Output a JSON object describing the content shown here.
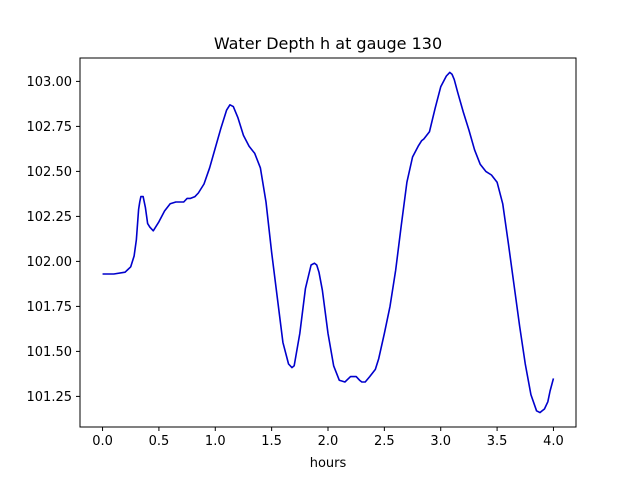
{
  "chart_data": {
    "type": "line",
    "title": "Water Depth h at gauge 130",
    "xlabel": "hours",
    "ylabel": "",
    "xlim": [
      -0.2,
      4.2
    ],
    "ylim": [
      101.08,
      103.13
    ],
    "xticks": [
      0.0,
      0.5,
      1.0,
      1.5,
      2.0,
      2.5,
      3.0,
      3.5,
      4.0
    ],
    "xtick_labels": [
      "0.0",
      "0.5",
      "1.0",
      "1.5",
      "2.0",
      "2.5",
      "3.0",
      "3.5",
      "4.0"
    ],
    "yticks": [
      101.25,
      101.5,
      101.75,
      102.0,
      102.25,
      102.5,
      102.75,
      103.0
    ],
    "ytick_labels": [
      "101.25",
      "101.50",
      "101.75",
      "102.00",
      "102.25",
      "102.50",
      "102.75",
      "103.00"
    ],
    "grid": false,
    "line_color": "#0000cc",
    "series": [
      {
        "x": [
          0.0,
          0.1,
          0.2,
          0.25,
          0.28,
          0.3,
          0.32,
          0.33,
          0.34,
          0.36,
          0.38,
          0.4,
          0.42,
          0.45,
          0.5,
          0.55,
          0.6,
          0.65,
          0.7,
          0.72,
          0.75,
          0.78,
          0.82,
          0.85,
          0.9,
          0.95,
          1.0,
          1.05,
          1.1,
          1.13,
          1.16,
          1.2,
          1.25,
          1.3,
          1.35,
          1.4,
          1.45,
          1.5,
          1.55,
          1.6,
          1.65,
          1.68,
          1.7,
          1.75,
          1.8,
          1.85,
          1.88,
          1.9,
          1.92,
          1.95,
          2.0,
          2.05,
          2.1,
          2.15,
          2.2,
          2.25,
          2.28,
          2.3,
          2.33,
          2.37,
          2.42,
          2.45,
          2.5,
          2.55,
          2.6,
          2.65,
          2.7,
          2.75,
          2.8,
          2.83,
          2.85,
          2.9,
          2.95,
          3.0,
          3.05,
          3.08,
          3.1,
          3.12,
          3.15,
          3.2,
          3.25,
          3.3,
          3.35,
          3.4,
          3.45,
          3.5,
          3.55,
          3.6,
          3.65,
          3.7,
          3.75,
          3.8,
          3.85,
          3.88,
          3.9,
          3.92,
          3.95,
          3.97,
          4.0
        ],
        "y": [
          101.93,
          101.93,
          101.94,
          101.97,
          102.03,
          102.12,
          102.29,
          102.33,
          102.36,
          102.36,
          102.3,
          102.21,
          102.19,
          102.17,
          102.22,
          102.28,
          102.32,
          102.33,
          102.33,
          102.33,
          102.35,
          102.35,
          102.36,
          102.38,
          102.43,
          102.52,
          102.63,
          102.74,
          102.84,
          102.87,
          102.86,
          102.8,
          102.7,
          102.64,
          102.6,
          102.52,
          102.33,
          102.05,
          101.8,
          101.55,
          101.43,
          101.41,
          101.42,
          101.6,
          101.85,
          101.98,
          101.99,
          101.98,
          101.94,
          101.84,
          101.6,
          101.42,
          101.34,
          101.33,
          101.36,
          101.36,
          101.34,
          101.33,
          101.33,
          101.36,
          101.4,
          101.46,
          101.6,
          101.75,
          101.95,
          102.2,
          102.44,
          102.58,
          102.64,
          102.67,
          102.68,
          102.72,
          102.85,
          102.97,
          103.03,
          103.05,
          103.04,
          103.01,
          102.94,
          102.83,
          102.73,
          102.62,
          102.54,
          102.5,
          102.48,
          102.44,
          102.32,
          102.1,
          101.87,
          101.64,
          101.43,
          101.26,
          101.17,
          101.16,
          101.17,
          101.18,
          101.22,
          101.28,
          101.35
        ]
      }
    ]
  }
}
